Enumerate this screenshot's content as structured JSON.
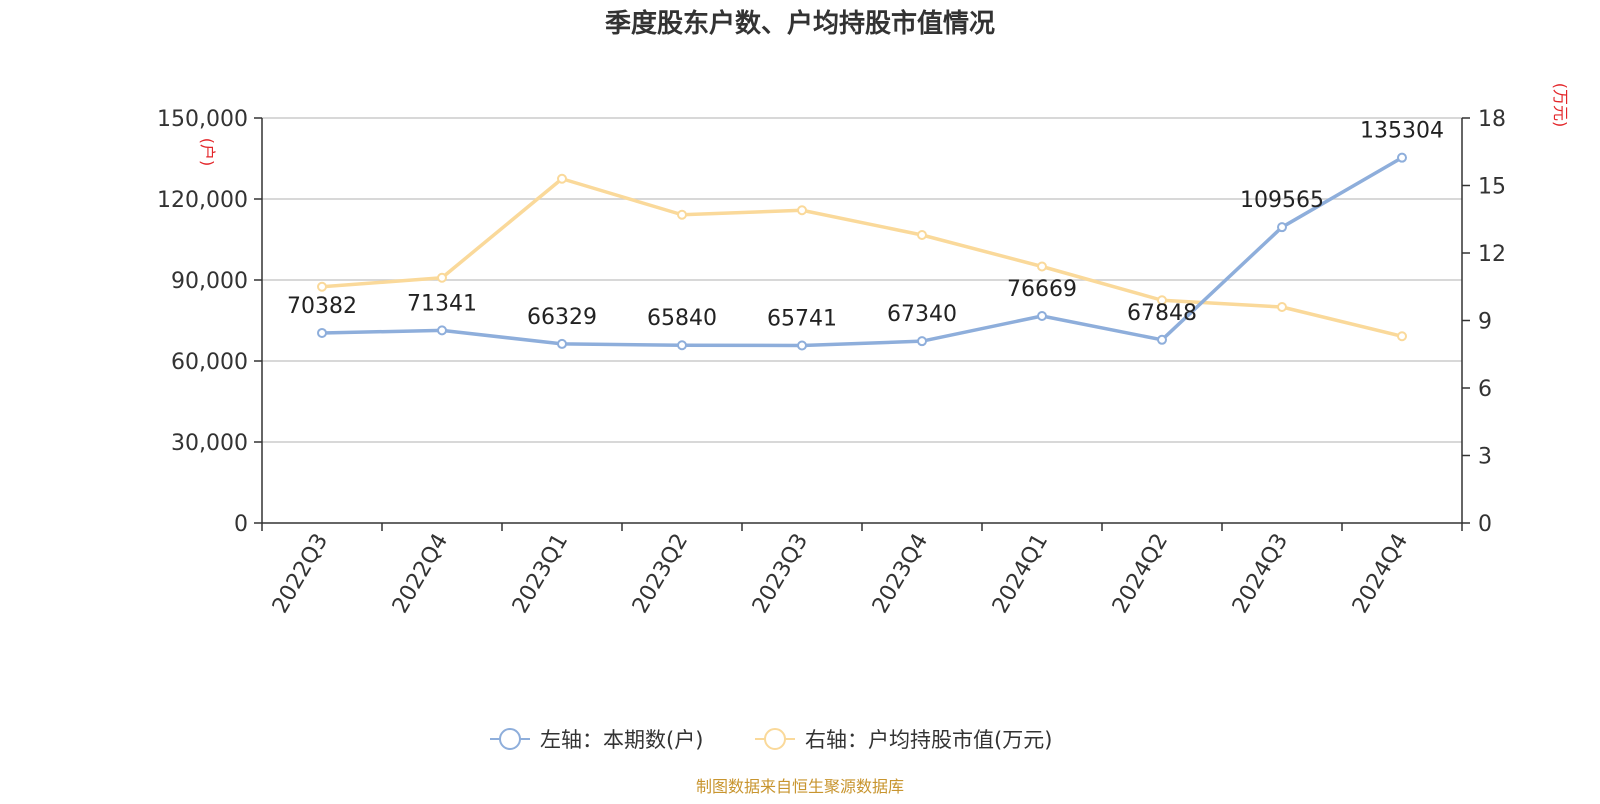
{
  "chart_data": {
    "type": "line",
    "title": "季度股东户数、户均持股市值情况",
    "categories": [
      "2022Q3",
      "2022Q4",
      "2023Q1",
      "2023Q2",
      "2023Q3",
      "2023Q4",
      "2024Q1",
      "2024Q2",
      "2024Q3",
      "2024Q4"
    ],
    "left_axis": {
      "unit_label": "(户)",
      "range": [
        0,
        150000
      ],
      "ticks": [
        0,
        30000,
        60000,
        90000,
        120000,
        150000
      ],
      "tick_labels": [
        "0",
        "30,000",
        "60,000",
        "90,000",
        "120,000",
        "150,000"
      ]
    },
    "right_axis": {
      "unit_label": "(万元)",
      "range": [
        0,
        18
      ],
      "ticks": [
        0,
        3,
        6,
        9,
        12,
        15,
        18
      ],
      "tick_labels": [
        "0",
        "3",
        "6",
        "9",
        "12",
        "15",
        "18"
      ]
    },
    "series": [
      {
        "name": "左轴：本期数(户)",
        "axis": "left",
        "color": "#8eaedb",
        "values": [
          70382,
          71341,
          66329,
          65840,
          65741,
          67340,
          76669,
          67848,
          109565,
          135304
        ],
        "labels": [
          "70382",
          "71341",
          "66329",
          "65840",
          "65741",
          "67340",
          "76669",
          "67848",
          "109565",
          "135304"
        ]
      },
      {
        "name": "右轴：户均持股市值(万元)",
        "axis": "right",
        "color": "#fad99a",
        "values": [
          10.5,
          10.9,
          15.3,
          13.7,
          13.9,
          12.8,
          11.4,
          9.9,
          9.6,
          8.3
        ]
      }
    ],
    "grid": true,
    "legend_position": "bottom-center"
  },
  "source": "制图数据来自恒生聚源数据库",
  "colors": {
    "axis_unit": "#e3262a",
    "source_text": "#c8952f",
    "grid": "#cccccc",
    "axis": "#333333",
    "text": "#333333"
  }
}
